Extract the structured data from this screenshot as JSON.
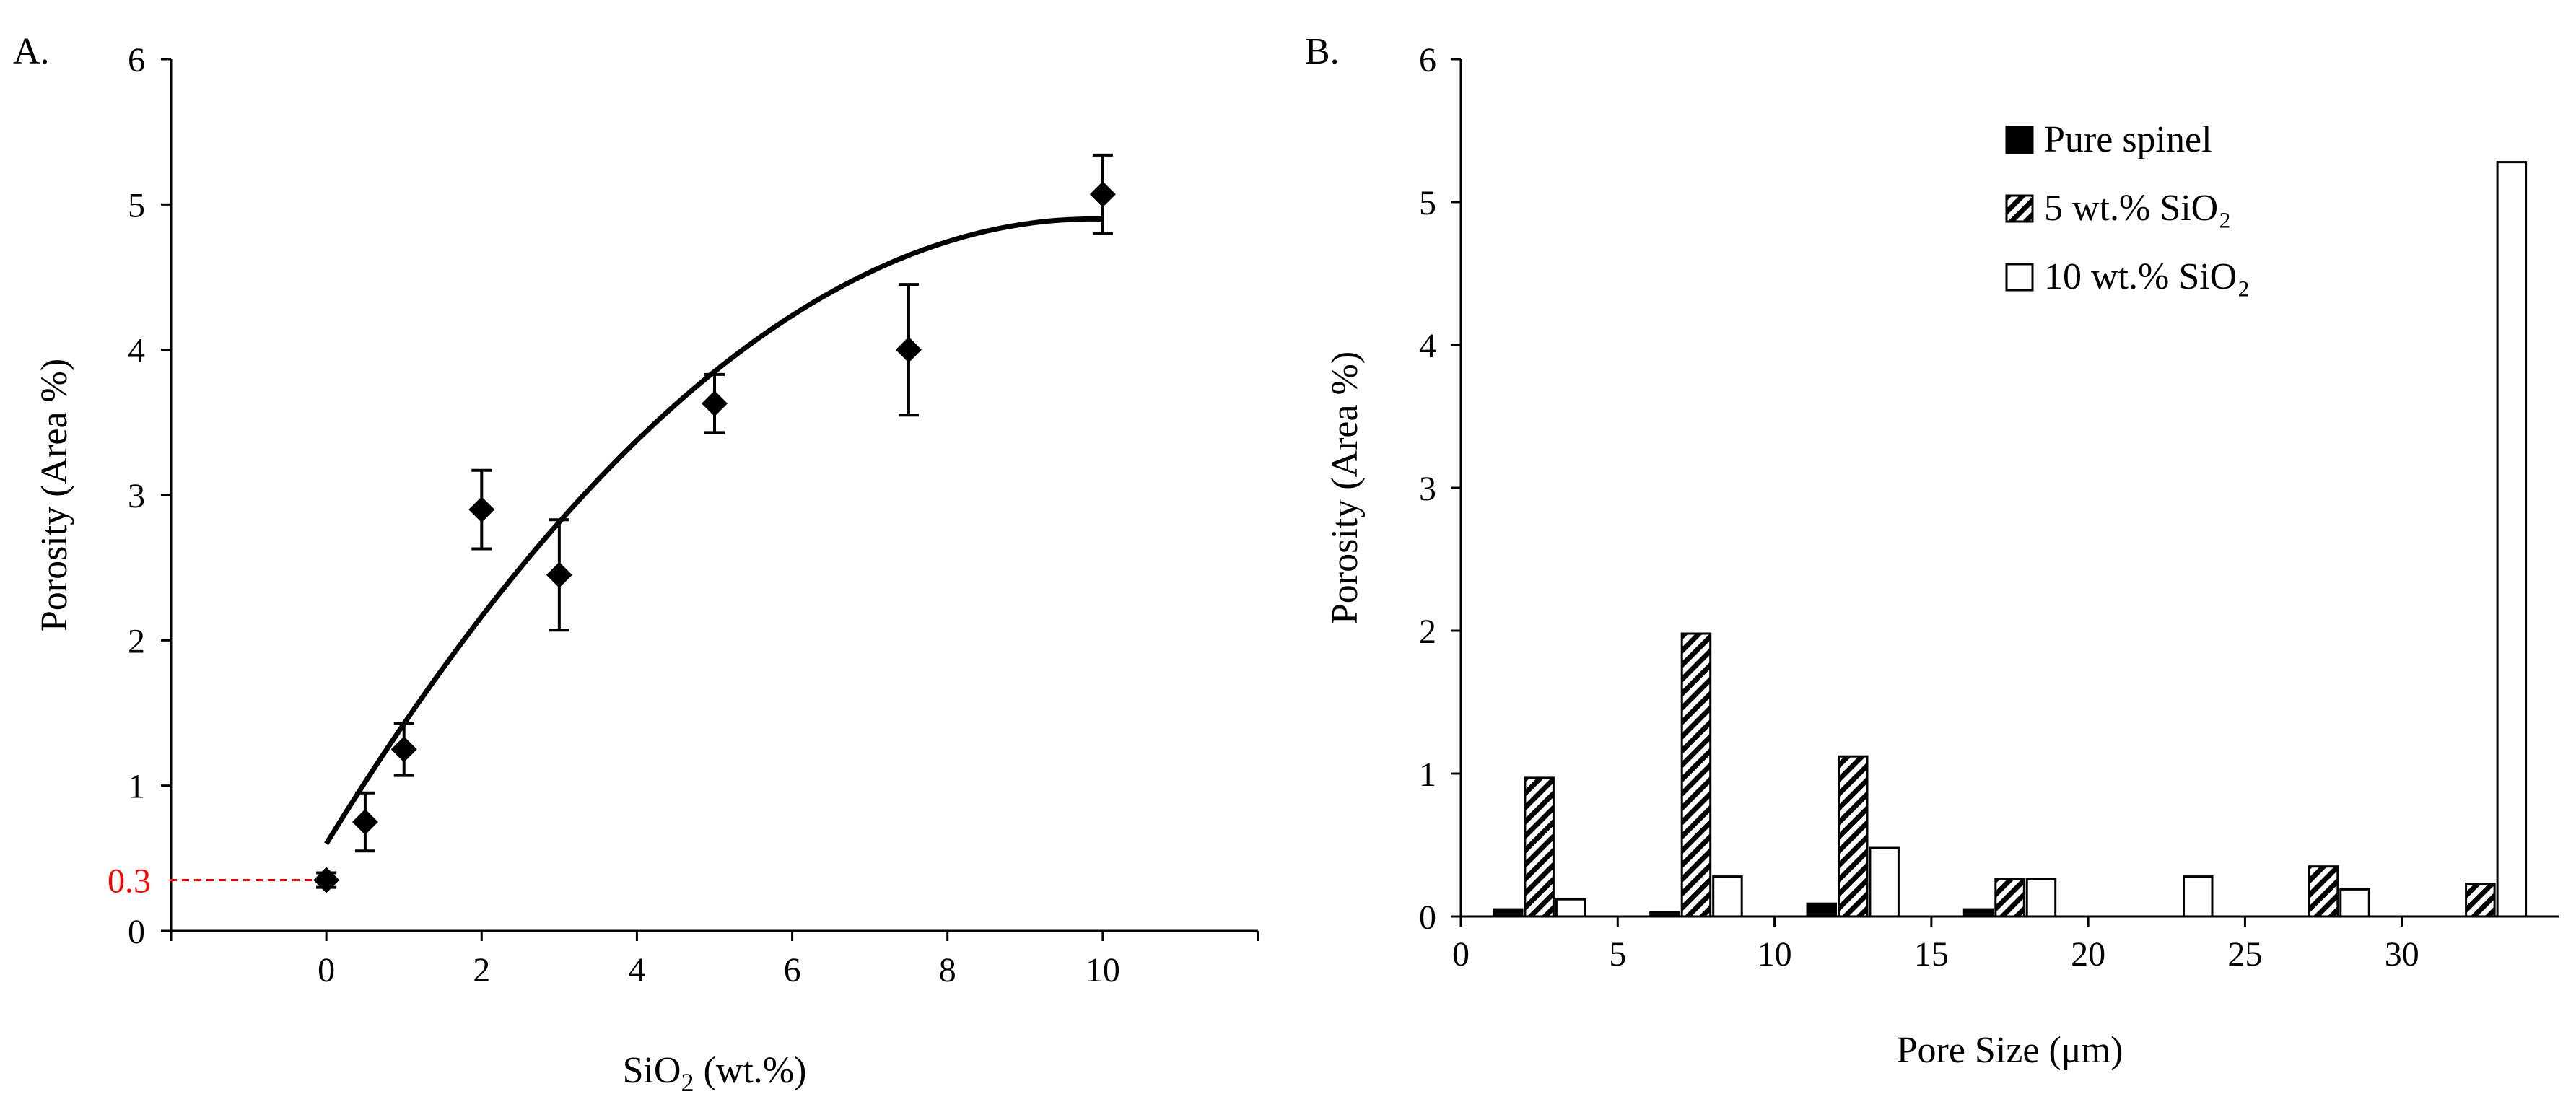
{
  "chart_data": [
    {
      "panel_label": "A.",
      "type": "scatter",
      "xlabel_main": "SiO",
      "xlabel_sub": "2",
      "xlabel_rest": " (wt.%)",
      "ylabel": "Porosity (Area %)",
      "xlim": [
        -2,
        12
      ],
      "ylim": [
        0,
        6
      ],
      "x_ticks": [
        0,
        2,
        4,
        6,
        8,
        10
      ],
      "y_ticks": [
        0,
        1,
        2,
        3,
        4,
        5,
        6
      ],
      "points": [
        {
          "x": 0,
          "y": 0.35,
          "err": 0.05
        },
        {
          "x": 0.5,
          "y": 0.75,
          "err": 0.2
        },
        {
          "x": 1,
          "y": 1.25,
          "err": 0.18
        },
        {
          "x": 2,
          "y": 2.9,
          "err": 0.27
        },
        {
          "x": 3,
          "y": 2.45,
          "err": 0.38
        },
        {
          "x": 5,
          "y": 3.63,
          "err": 0.2
        },
        {
          "x": 7.5,
          "y": 4.0,
          "err": 0.45
        },
        {
          "x": 10,
          "y": 5.07,
          "err": 0.27
        }
      ],
      "fit_curve": {
        "x_range": [
          0,
          10
        ],
        "coefficients": [
          0.6,
          0.87,
          -0.044
        ]
      },
      "annotation": {
        "label": "0.3",
        "y": 0.35,
        "color": "#ff0000"
      }
    },
    {
      "panel_label": "B.",
      "type": "bar",
      "xlabel": "Pore Size (μm)",
      "ylabel": "Porosity (Area %)",
      "xlim": [
        0,
        35
      ],
      "ylim": [
        0,
        6
      ],
      "x_ticks": [
        0,
        5,
        10,
        15,
        20,
        25,
        30
      ],
      "y_ticks": [
        0,
        1,
        2,
        3,
        4,
        5,
        6
      ],
      "bar_width": 1,
      "series": [
        {
          "name": "Pure spinel",
          "legend_label": "Pure spinel",
          "style": "solid",
          "color": "#000000",
          "x": [
            1.5,
            6.5,
            11.5,
            16.5,
            21.5,
            26.5,
            31.5
          ],
          "values": [
            0.05,
            0.03,
            0.09,
            0.05,
            0,
            0,
            0
          ]
        },
        {
          "name": "5 wt.% SiO2",
          "legend_label": "5 wt.% SiO₂",
          "style": "hatched",
          "color": "#000000",
          "x": [
            2.5,
            7.5,
            12.5,
            17.5,
            22.5,
            27.5,
            32.5
          ],
          "values": [
            0.97,
            1.98,
            1.12,
            0.26,
            0,
            0.35,
            0.23
          ]
        },
        {
          "name": "10 wt.% SiO2",
          "legend_label": "10 wt.% SiO₂",
          "style": "open",
          "color": "#ffffff",
          "x": [
            3.5,
            8.5,
            13.5,
            18.5,
            23.5,
            28.5,
            33.5
          ],
          "values": [
            0.12,
            0.28,
            0.48,
            0.26,
            0.28,
            0.19,
            5.28
          ]
        }
      ],
      "legend_position": "top-right"
    }
  ]
}
